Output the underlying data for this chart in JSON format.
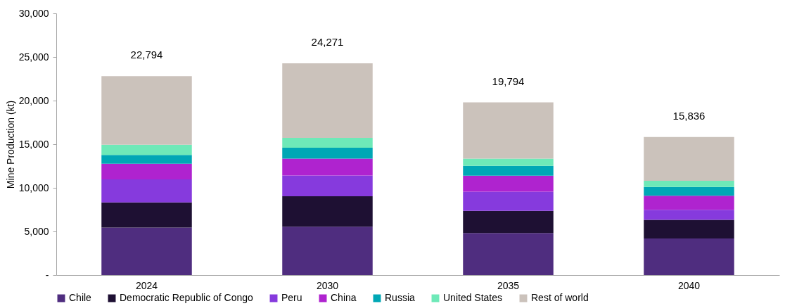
{
  "chart_data": {
    "type": "bar",
    "stacked": true,
    "ylabel": "Mine Production (kt)",
    "categories": [
      "2024",
      "2030",
      "2035",
      "2040"
    ],
    "series": [
      {
        "name": "Chile",
        "color": "#4f2d7f",
        "values": [
          5450,
          5540,
          4810,
          4190
        ]
      },
      {
        "name": "Democratic Republic of Congo",
        "color": "#1e1033",
        "values": [
          2880,
          3490,
          2540,
          2150
        ]
      },
      {
        "name": "Peru",
        "color": "#863add",
        "values": [
          2630,
          2390,
          2200,
          1130
        ]
      },
      {
        "name": "China",
        "color": "#af23cf",
        "values": [
          1800,
          1930,
          1840,
          1620
        ]
      },
      {
        "name": "Russia",
        "color": "#00a7b5",
        "values": [
          1010,
          1250,
          1130,
          1010
        ]
      },
      {
        "name": "United States",
        "color": "#6ee9b8",
        "values": [
          1170,
          1130,
          830,
          700
        ]
      },
      {
        "name": "Rest of world",
        "color": "#cbc2bb",
        "values": [
          7854,
          8541,
          6444,
          5036
        ]
      }
    ],
    "totals": [
      "22,794",
      "24,271",
      "19,794",
      "15,836"
    ],
    "ylim": [
      0,
      30000
    ],
    "yticks": [
      {
        "value": 0,
        "label": "-"
      },
      {
        "value": 5000,
        "label": "5,000"
      },
      {
        "value": 10000,
        "label": "10,000"
      },
      {
        "value": 15000,
        "label": "15,000"
      },
      {
        "value": 20000,
        "label": "20,000"
      },
      {
        "value": 25000,
        "label": "25,000"
      },
      {
        "value": 30000,
        "label": "30,000"
      }
    ],
    "grid": false,
    "legend": "bottom"
  }
}
